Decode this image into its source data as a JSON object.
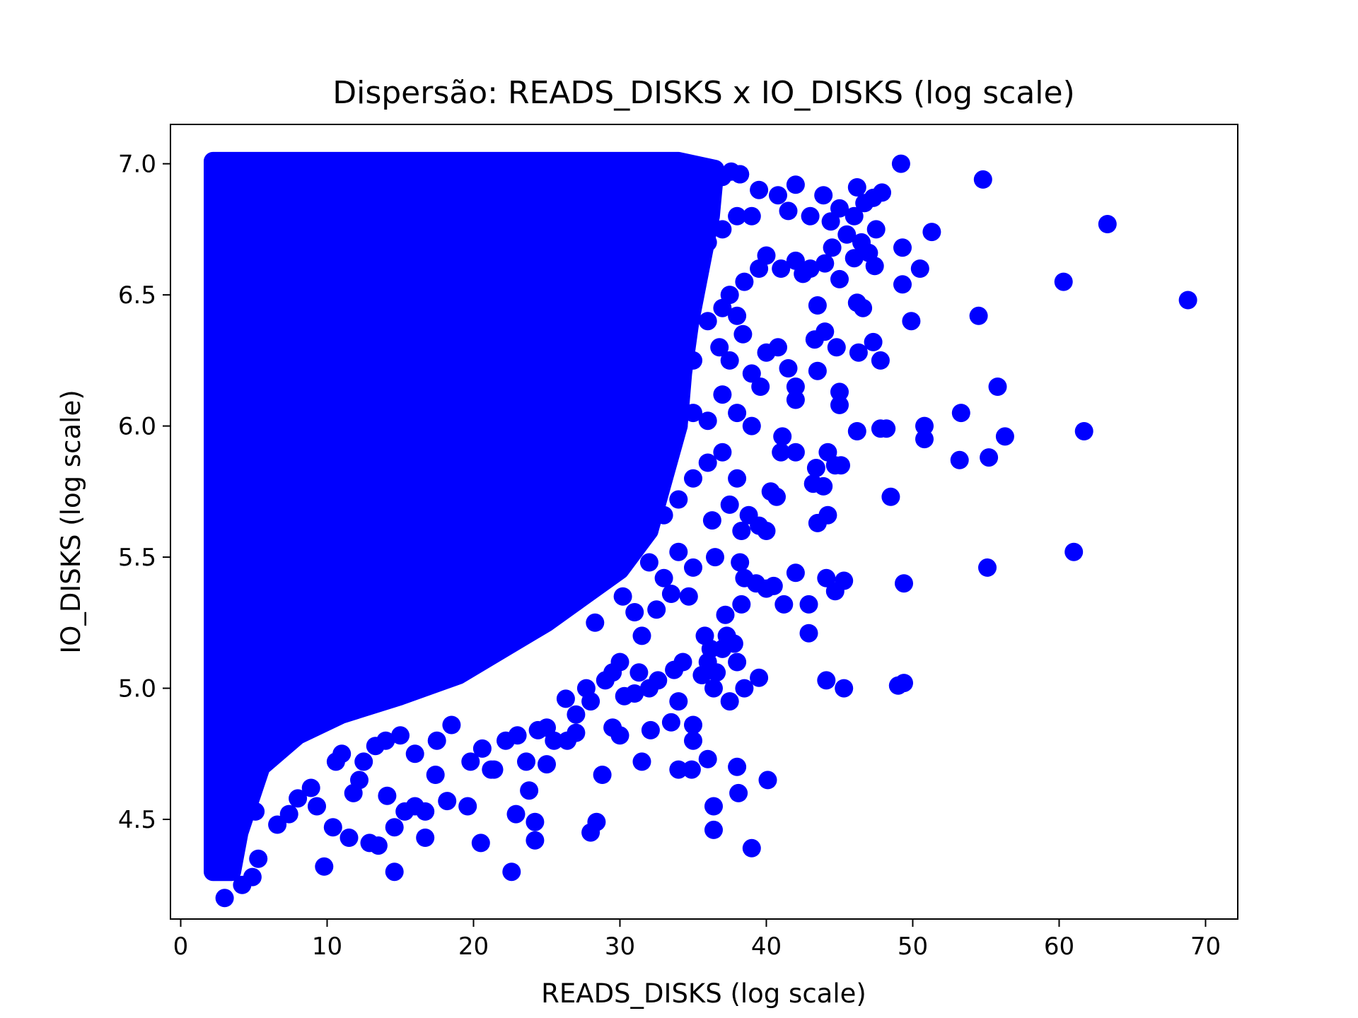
{
  "chart_data": {
    "type": "scatter",
    "title": "Dispersão: READS_DISKS x IO_DISKS (log scale)",
    "xlabel": "READS_DISKS (log scale)",
    "ylabel": "IO_DISKS (log scale)",
    "xlim": [
      -0.7,
      72.2
    ],
    "ylim": [
      4.12,
      7.15
    ],
    "xticks": [
      0,
      10,
      20,
      30,
      40,
      50,
      60,
      70
    ],
    "yticks": [
      4.5,
      5.0,
      5.5,
      6.0,
      6.5,
      7.0
    ],
    "xtick_labels": [
      "0",
      "10",
      "20",
      "30",
      "40",
      "50",
      "60",
      "70"
    ],
    "ytick_labels": [
      "4.5",
      "5.0",
      "5.5",
      "6.0",
      "6.5",
      "7.0"
    ],
    "grid": false,
    "legend": "none",
    "marker_color": "#0000ff",
    "dense_region_note": "",
    "series": [
      {
        "values": [
          [
            3.0,
            4.2
          ],
          [
            4.2,
            4.25
          ],
          [
            4.9,
            4.28
          ],
          [
            5.3,
            4.35
          ],
          [
            9.8,
            4.32
          ],
          [
            14.6,
            4.3
          ],
          [
            22.6,
            4.3
          ],
          [
            5.1,
            4.53
          ],
          [
            6.6,
            4.48
          ],
          [
            7.4,
            4.52
          ],
          [
            8.0,
            4.58
          ],
          [
            8.9,
            4.62
          ],
          [
            9.3,
            4.55
          ],
          [
            10.4,
            4.47
          ],
          [
            11.5,
            4.43
          ],
          [
            11.8,
            4.6
          ],
          [
            12.2,
            4.65
          ],
          [
            12.9,
            4.41
          ],
          [
            13.5,
            4.4
          ],
          [
            14.1,
            4.59
          ],
          [
            14.6,
            4.47
          ],
          [
            15.3,
            4.53
          ],
          [
            16.0,
            4.55
          ],
          [
            16.7,
            4.53
          ],
          [
            16.7,
            4.43
          ],
          [
            17.4,
            4.67
          ],
          [
            18.2,
            4.57
          ],
          [
            19.6,
            4.55
          ],
          [
            20.5,
            4.41
          ],
          [
            21.2,
            4.69
          ],
          [
            22.9,
            4.52
          ],
          [
            23.8,
            4.61
          ],
          [
            24.2,
            4.49
          ],
          [
            24.2,
            4.42
          ],
          [
            25.0,
            4.71
          ],
          [
            28.0,
            4.45
          ],
          [
            28.4,
            4.49
          ],
          [
            28.8,
            4.67
          ],
          [
            31.5,
            4.72
          ],
          [
            34.0,
            4.69
          ],
          [
            34.9,
            4.69
          ],
          [
            36.4,
            4.55
          ],
          [
            36.4,
            4.46
          ],
          [
            38.0,
            4.7
          ],
          [
            38.1,
            4.6
          ],
          [
            39.0,
            4.39
          ],
          [
            40.1,
            4.65
          ],
          [
            25.0,
            4.85
          ],
          [
            26.4,
            4.8
          ],
          [
            27.0,
            4.9
          ],
          [
            28.0,
            4.95
          ],
          [
            29.5,
            4.85
          ],
          [
            30.0,
            4.82
          ],
          [
            31.0,
            4.98
          ],
          [
            32.1,
            4.84
          ],
          [
            32.0,
            5.0
          ],
          [
            33.5,
            4.87
          ],
          [
            34.0,
            4.95
          ],
          [
            35.0,
            4.86
          ],
          [
            35.0,
            4.8
          ],
          [
            36.0,
            4.73
          ],
          [
            36.4,
            5.0
          ],
          [
            37.5,
            4.95
          ],
          [
            38.5,
            5.0
          ],
          [
            39.5,
            5.04
          ],
          [
            30.0,
            5.1
          ],
          [
            31.5,
            5.2
          ],
          [
            32.5,
            5.3
          ],
          [
            33.5,
            5.36
          ],
          [
            34.7,
            5.35
          ],
          [
            35.8,
            5.2
          ],
          [
            36.0,
            5.1
          ],
          [
            36.6,
            5.06
          ],
          [
            37.2,
            5.28
          ],
          [
            37.8,
            5.17
          ],
          [
            38.3,
            5.32
          ],
          [
            38.5,
            5.42
          ],
          [
            39.3,
            5.4
          ],
          [
            40.0,
            5.38
          ],
          [
            40.5,
            5.39
          ],
          [
            41.2,
            5.32
          ],
          [
            42.0,
            5.44
          ],
          [
            42.9,
            5.32
          ],
          [
            42.9,
            5.21
          ],
          [
            44.1,
            5.03
          ],
          [
            44.1,
            5.42
          ],
          [
            44.7,
            5.37
          ],
          [
            45.3,
            5.0
          ],
          [
            45.3,
            5.41
          ],
          [
            49.0,
            5.01
          ],
          [
            49.4,
            5.02
          ],
          [
            49.4,
            5.4
          ],
          [
            55.1,
            5.46
          ],
          [
            61.0,
            5.52
          ],
          [
            36.3,
            5.64
          ],
          [
            37.5,
            5.7
          ],
          [
            38.0,
            5.8
          ],
          [
            38.3,
            5.6
          ],
          [
            38.8,
            5.66
          ],
          [
            39.5,
            5.62
          ],
          [
            40.0,
            5.6
          ],
          [
            40.3,
            5.75
          ],
          [
            40.7,
            5.73
          ],
          [
            41.0,
            5.9
          ],
          [
            41.1,
            5.96
          ],
          [
            42.0,
            5.9
          ],
          [
            43.2,
            5.78
          ],
          [
            43.4,
            5.84
          ],
          [
            43.5,
            5.63
          ],
          [
            43.9,
            5.77
          ],
          [
            44.2,
            5.66
          ],
          [
            44.2,
            5.9
          ],
          [
            44.7,
            5.85
          ],
          [
            45.1,
            5.85
          ],
          [
            48.5,
            5.73
          ],
          [
            46.2,
            5.98
          ],
          [
            47.8,
            5.99
          ],
          [
            48.2,
            5.99
          ],
          [
            50.8,
            6.0
          ],
          [
            50.8,
            5.95
          ],
          [
            53.2,
            5.87
          ],
          [
            55.2,
            5.88
          ],
          [
            56.3,
            5.96
          ],
          [
            61.7,
            5.98
          ],
          [
            53.3,
            6.05
          ],
          [
            55.8,
            6.15
          ],
          [
            36.8,
            6.3
          ],
          [
            37.5,
            6.25
          ],
          [
            38.4,
            6.35
          ],
          [
            39.0,
            6.2
          ],
          [
            39.6,
            6.15
          ],
          [
            40.0,
            6.28
          ],
          [
            40.8,
            6.3
          ],
          [
            41.5,
            6.22
          ],
          [
            42.0,
            6.1
          ],
          [
            42.0,
            6.15
          ],
          [
            43.3,
            6.33
          ],
          [
            43.5,
            6.21
          ],
          [
            44.0,
            6.36
          ],
          [
            44.8,
            6.3
          ],
          [
            45.0,
            6.08
          ],
          [
            45.0,
            6.13
          ],
          [
            46.3,
            6.28
          ],
          [
            47.3,
            6.32
          ],
          [
            47.8,
            6.25
          ],
          [
            49.9,
            6.4
          ],
          [
            54.5,
            6.42
          ],
          [
            37.5,
            6.5
          ],
          [
            38.5,
            6.55
          ],
          [
            39.5,
            6.6
          ],
          [
            40.0,
            6.65
          ],
          [
            41.0,
            6.6
          ],
          [
            42.0,
            6.63
          ],
          [
            42.5,
            6.58
          ],
          [
            43.0,
            6.6
          ],
          [
            43.5,
            6.46
          ],
          [
            44.0,
            6.62
          ],
          [
            44.5,
            6.68
          ],
          [
            45.0,
            6.56
          ],
          [
            45.5,
            6.73
          ],
          [
            46.0,
            6.64
          ],
          [
            46.2,
            6.47
          ],
          [
            46.5,
            6.7
          ],
          [
            46.6,
            6.45
          ],
          [
            47.0,
            6.66
          ],
          [
            47.4,
            6.61
          ],
          [
            47.5,
            6.75
          ],
          [
            49.3,
            6.54
          ],
          [
            49.3,
            6.68
          ],
          [
            50.5,
            6.6
          ],
          [
            51.3,
            6.74
          ],
          [
            60.3,
            6.55
          ],
          [
            63.3,
            6.77
          ],
          [
            68.8,
            6.48
          ],
          [
            37.0,
            6.95
          ],
          [
            38.2,
            6.96
          ],
          [
            39.5,
            6.9
          ],
          [
            40.8,
            6.88
          ],
          [
            41.5,
            6.82
          ],
          [
            42.0,
            6.92
          ],
          [
            43.0,
            6.8
          ],
          [
            43.9,
            6.88
          ],
          [
            44.4,
            6.78
          ],
          [
            45.0,
            6.83
          ],
          [
            46.0,
            6.8
          ],
          [
            46.2,
            6.91
          ],
          [
            46.7,
            6.85
          ],
          [
            47.3,
            6.87
          ],
          [
            47.9,
            6.89
          ],
          [
            49.2,
            7.0
          ],
          [
            54.8,
            6.94
          ],
          [
            28.8,
            7.0
          ],
          [
            31.0,
            7.0
          ],
          [
            33.4,
            7.0
          ],
          [
            35.0,
            6.98
          ],
          [
            36.0,
            6.97
          ],
          [
            37.6,
            6.97
          ],
          [
            38.2,
            6.96
          ],
          [
            30.0,
            6.98
          ],
          [
            26.7,
            6.97
          ],
          [
            24.0,
            7.0
          ],
          [
            20.0,
            7.0
          ],
          [
            16.0,
            6.99
          ],
          [
            12.0,
            7.0
          ],
          [
            8.0,
            7.0
          ],
          [
            4.0,
            7.0
          ],
          [
            8.4,
            4.84
          ],
          [
            9.6,
            4.9
          ],
          [
            10.6,
            4.72
          ],
          [
            11.0,
            4.75
          ],
          [
            12.5,
            4.72
          ],
          [
            13.3,
            4.78
          ],
          [
            14.0,
            4.8
          ],
          [
            15.0,
            4.82
          ],
          [
            16.0,
            4.75
          ],
          [
            17.5,
            4.8
          ],
          [
            18.5,
            4.86
          ],
          [
            19.8,
            4.72
          ],
          [
            20.6,
            4.77
          ],
          [
            21.4,
            4.69
          ],
          [
            22.2,
            4.8
          ],
          [
            23.0,
            4.82
          ],
          [
            23.6,
            4.72
          ],
          [
            24.4,
            4.84
          ],
          [
            25.5,
            4.8
          ],
          [
            26.3,
            4.96
          ],
          [
            27.0,
            4.83
          ],
          [
            27.7,
            5.0
          ],
          [
            29.0,
            5.03
          ],
          [
            29.5,
            5.06
          ],
          [
            30.3,
            4.97
          ],
          [
            31.3,
            5.06
          ],
          [
            32.6,
            5.03
          ],
          [
            33.7,
            5.07
          ],
          [
            34.3,
            5.1
          ],
          [
            35.6,
            5.05
          ],
          [
            36.2,
            5.15
          ],
          [
            37.0,
            5.15
          ],
          [
            37.3,
            5.2
          ],
          [
            38.0,
            5.1
          ],
          [
            26.0,
            5.4
          ],
          [
            27.0,
            5.33
          ],
          [
            28.3,
            5.25
          ],
          [
            29.3,
            5.45
          ],
          [
            30.2,
            5.35
          ],
          [
            31.0,
            5.29
          ],
          [
            32.0,
            5.48
          ],
          [
            33.0,
            5.42
          ],
          [
            34.0,
            5.52
          ],
          [
            35.0,
            5.46
          ],
          [
            36.5,
            5.5
          ],
          [
            38.2,
            5.48
          ],
          [
            32.0,
            5.6
          ],
          [
            33.0,
            5.66
          ],
          [
            34.0,
            5.72
          ],
          [
            35.0,
            5.8
          ],
          [
            36.0,
            5.86
          ],
          [
            37.0,
            5.9
          ],
          [
            34.0,
            6.0
          ],
          [
            35.0,
            6.05
          ],
          [
            36.0,
            6.02
          ],
          [
            37.0,
            6.12
          ],
          [
            38.0,
            6.05
          ],
          [
            39.0,
            6.0
          ],
          [
            33.8,
            6.2
          ],
          [
            35.0,
            6.25
          ],
          [
            36.0,
            6.4
          ],
          [
            37.0,
            6.45
          ],
          [
            38.0,
            6.42
          ],
          [
            34.0,
            6.6
          ],
          [
            35.0,
            6.65
          ],
          [
            36.0,
            6.7
          ],
          [
            37.0,
            6.75
          ],
          [
            38.0,
            6.8
          ],
          [
            39.0,
            6.8
          ]
        ]
      }
    ]
  }
}
